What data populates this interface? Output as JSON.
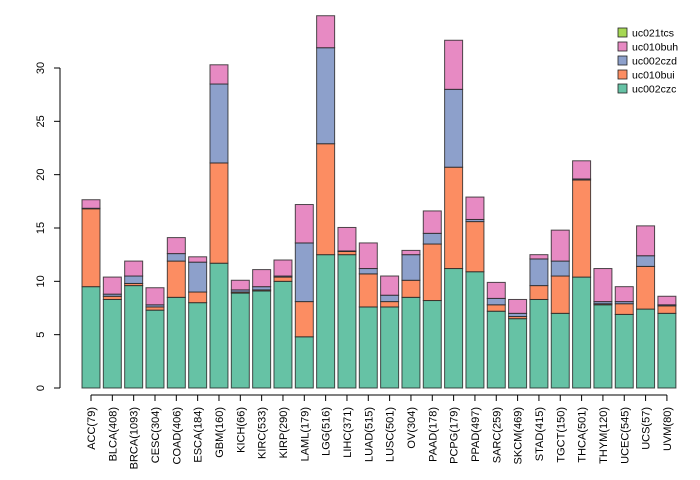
{
  "chart_data": {
    "type": "bar",
    "stacked": true,
    "title": "",
    "xlabel": "",
    "ylabel": "",
    "ylim": [
      0,
      35.5
    ],
    "yticks": [
      0,
      5,
      10,
      15,
      20,
      25,
      30
    ],
    "legend_position": "top-right",
    "categories": [
      "ACC(79)",
      "BLCA(408)",
      "BRCA(1093)",
      "CESC(304)",
      "COAD(406)",
      "ESCA(184)",
      "GBM(160)",
      "KICH(66)",
      "KIRC(533)",
      "KIRP(290)",
      "LAML(179)",
      "LGG(516)",
      "LIHC(371)",
      "LUAD(515)",
      "LUSC(501)",
      "OV(304)",
      "PAAD(178)",
      "PCPG(179)",
      "PPAD(497)",
      "SARC(259)",
      "SKCM(469)",
      "STAD(415)",
      "TGCT(150)",
      "THCA(501)",
      "THYM(120)",
      "UCEC(545)",
      "UCS(57)",
      "UVM(80)"
    ],
    "series": [
      {
        "name": "uc002czc",
        "color": "#66c2a5",
        "values": [
          9.5,
          8.3,
          9.6,
          7.3,
          8.5,
          8.0,
          11.7,
          8.9,
          9.1,
          10.0,
          4.8,
          12.5,
          12.5,
          7.6,
          7.6,
          8.5,
          8.2,
          11.2,
          10.9,
          7.2,
          6.5,
          8.3,
          7.0,
          10.4,
          7.8,
          6.9,
          7.4,
          7.0
        ]
      },
      {
        "name": "uc010bui",
        "color": "#fc8d62",
        "values": [
          7.3,
          0.3,
          0.2,
          0.3,
          3.4,
          1.0,
          9.4,
          0.1,
          0.1,
          0.4,
          3.3,
          10.4,
          0.3,
          3.1,
          0.5,
          1.6,
          5.3,
          9.5,
          4.7,
          0.6,
          0.2,
          1.3,
          3.5,
          9.1,
          0.1,
          1.0,
          4.0,
          0.7
        ]
      },
      {
        "name": "uc002czd",
        "color": "#8da0cb",
        "values": [
          0.05,
          0.2,
          0.7,
          0.2,
          0.7,
          2.8,
          7.4,
          0.2,
          0.3,
          0.1,
          5.5,
          9.0,
          0.05,
          0.5,
          0.6,
          2.4,
          1.0,
          7.3,
          0.2,
          0.6,
          0.3,
          2.5,
          1.4,
          0.1,
          0.2,
          0.2,
          1.0,
          0.1
        ]
      },
      {
        "name": "uc010buh",
        "color": "#e78ac3",
        "values": [
          0.8,
          1.6,
          1.4,
          1.6,
          1.5,
          0.5,
          1.8,
          0.9,
          1.6,
          1.5,
          3.6,
          3.0,
          2.2,
          2.4,
          1.8,
          0.4,
          2.1,
          4.6,
          2.1,
          1.5,
          1.3,
          0.4,
          2.9,
          1.7,
          3.1,
          1.4,
          2.8,
          0.8
        ]
      },
      {
        "name": "uc021tcs",
        "color": "#a6d854",
        "values": [
          0,
          0,
          0,
          0,
          0,
          0,
          0,
          0,
          0,
          0,
          0,
          0,
          0,
          0,
          0,
          0,
          0,
          0,
          0,
          0,
          0,
          0,
          0,
          0,
          0,
          0,
          0,
          0
        ]
      }
    ]
  }
}
